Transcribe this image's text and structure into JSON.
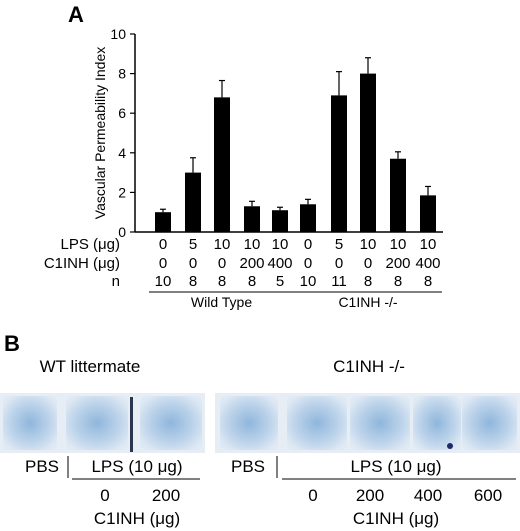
{
  "panel_a": {
    "letter": "A"
  },
  "panel_b": {
    "letter": "B",
    "group_labels": [
      "WT littermate",
      "C1INH -/-"
    ],
    "wt": {
      "pbs": "PBS",
      "lps": "LPS (10 μg)",
      "doses": [
        "0",
        "200"
      ],
      "c1inh_label": "C1INH (μg)"
    },
    "ko": {
      "pbs": "PBS",
      "lps": "LPS (10 μg)",
      "doses": [
        "0",
        "200",
        "400",
        "600"
      ],
      "c1inh_label": "C1INH (μg)"
    },
    "tissue_color": "#a9c4df"
  },
  "chart_data": {
    "type": "bar",
    "ylabel": "Vascular Permeability Index",
    "ylim": [
      0,
      10
    ],
    "yticks": [
      0,
      2,
      4,
      6,
      8,
      10
    ],
    "grid": false,
    "bar_color": "#000000",
    "row_labels": {
      "lps": "LPS (μg)",
      "c1inh": "C1INH (μg)",
      "n": "n"
    },
    "lps": [
      "0",
      "5",
      "10",
      "10",
      "10",
      "0",
      "5",
      "10",
      "10",
      "10"
    ],
    "c1inh": [
      "0",
      "0",
      "0",
      "200",
      "400",
      "0",
      "0",
      "0",
      "200",
      "400"
    ],
    "n": [
      "10",
      "8",
      "8",
      "8",
      "5",
      "10",
      "11",
      "8",
      "8",
      "8"
    ],
    "groups": [
      {
        "label": "Wild Type",
        "from": 0,
        "to": 4
      },
      {
        "label": "C1INH -/-",
        "from": 5,
        "to": 9
      }
    ],
    "values": [
      1.0,
      3.0,
      6.8,
      1.3,
      1.1,
      1.4,
      6.9,
      8.0,
      3.7,
      1.85
    ],
    "errors": [
      0.15,
      0.75,
      0.85,
      0.25,
      0.15,
      0.25,
      1.2,
      0.8,
      0.35,
      0.45
    ]
  }
}
